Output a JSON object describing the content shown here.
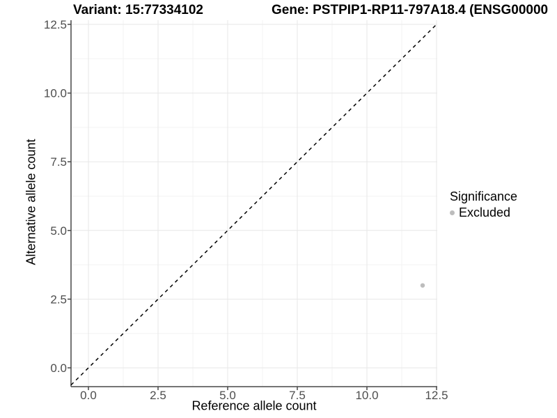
{
  "titles": {
    "variant": "Variant: 15:77334102",
    "gene": "Gene: PSTPIP1-RP11-797A18.4 (ENSG00000"
  },
  "chart_data": {
    "type": "scatter",
    "xlabel": "Reference allele count",
    "ylabel": "Alternative allele count",
    "x_ticks": {
      "values": [
        0,
        2.5,
        5,
        7.5,
        10,
        12.5
      ],
      "labels": [
        "0.0",
        "2.5",
        "5.0",
        "7.5",
        "10.0",
        "12.5"
      ]
    },
    "y_ticks": {
      "values": [
        0,
        2.5,
        5,
        7.5,
        10,
        12.5
      ],
      "labels": [
        "0.0",
        "2.5",
        "5.0",
        "7.5",
        "10.0",
        "12.5"
      ]
    },
    "x_minor": [
      1.25,
      3.75,
      6.25,
      8.75,
      11.25
    ],
    "y_minor": [
      1.25,
      3.75,
      6.25,
      8.75,
      11.25
    ],
    "xlim": [
      -0.625,
      12.525
    ],
    "ylim": [
      -0.69,
      12.65
    ],
    "grid": true,
    "series": [
      {
        "name": "Excluded",
        "points": [
          {
            "x": 12,
            "y": 3
          }
        ]
      }
    ],
    "identity_line": {
      "slope": 1,
      "intercept": 0,
      "style": "dashed"
    },
    "legend": {
      "title": "Significance",
      "position": "right",
      "items": [
        {
          "label": "Excluded",
          "color": "#bdbdbd"
        }
      ]
    },
    "colors": {
      "excluded_point": "#bdbdbd",
      "axis_text": "#4d4d4d",
      "axis_title": "#000000",
      "axis_line": "#474747",
      "grid_major": "#e7e7e7",
      "grid_minor": "#f3f3f3",
      "abline": "#000000",
      "background": "#ffffff"
    }
  }
}
